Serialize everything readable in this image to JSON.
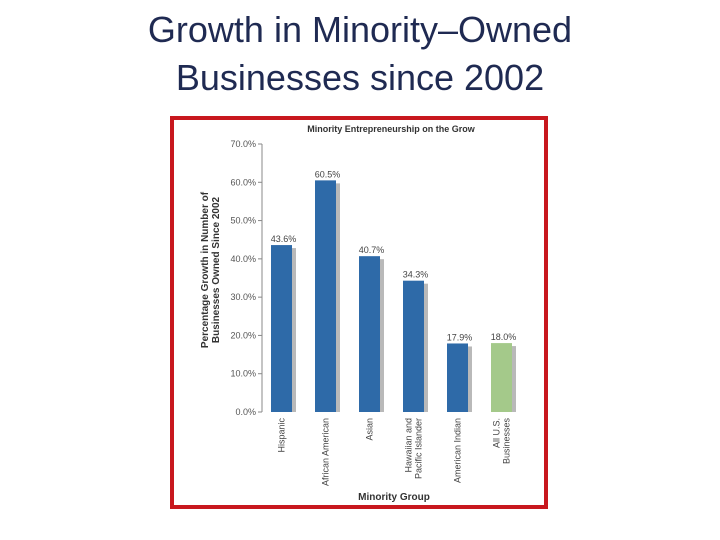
{
  "slide": {
    "title_line1": "Growth in Minority–Owned",
    "title_line2": "Businesses since 2002"
  },
  "chart_data": {
    "type": "bar",
    "title": "Minority Entrepreneurship on the Grow",
    "xlabel": "Minority Group",
    "ylabel_line1": "Percentage Growth in Number of",
    "ylabel_line2": "Businesses Owned Since 2002",
    "ylim": [
      0,
      70
    ],
    "yticks": [
      "0.0%",
      "10.0%",
      "20.0%",
      "30.0%",
      "40.0%",
      "50.0%",
      "60.0%",
      "70.0%"
    ],
    "categories": [
      [
        "Hispanic"
      ],
      [
        "African American"
      ],
      [
        "Asian"
      ],
      [
        "Hawaiian and",
        "Pacific Islander"
      ],
      [
        "American Indian"
      ],
      [
        "All U.S.",
        "Businesses"
      ]
    ],
    "values": [
      43.6,
      60.5,
      40.7,
      34.3,
      17.9,
      18.0
    ],
    "data_labels": [
      "43.6%",
      "60.5%",
      "40.7%",
      "34.3%",
      "17.9%",
      "18.0%"
    ],
    "colors": [
      "#2e6aa8",
      "#2e6aa8",
      "#2e6aa8",
      "#2e6aa8",
      "#2e6aa8",
      "#a4c98a"
    ],
    "shadow_color": "#b9b9b9",
    "grid": false
  }
}
